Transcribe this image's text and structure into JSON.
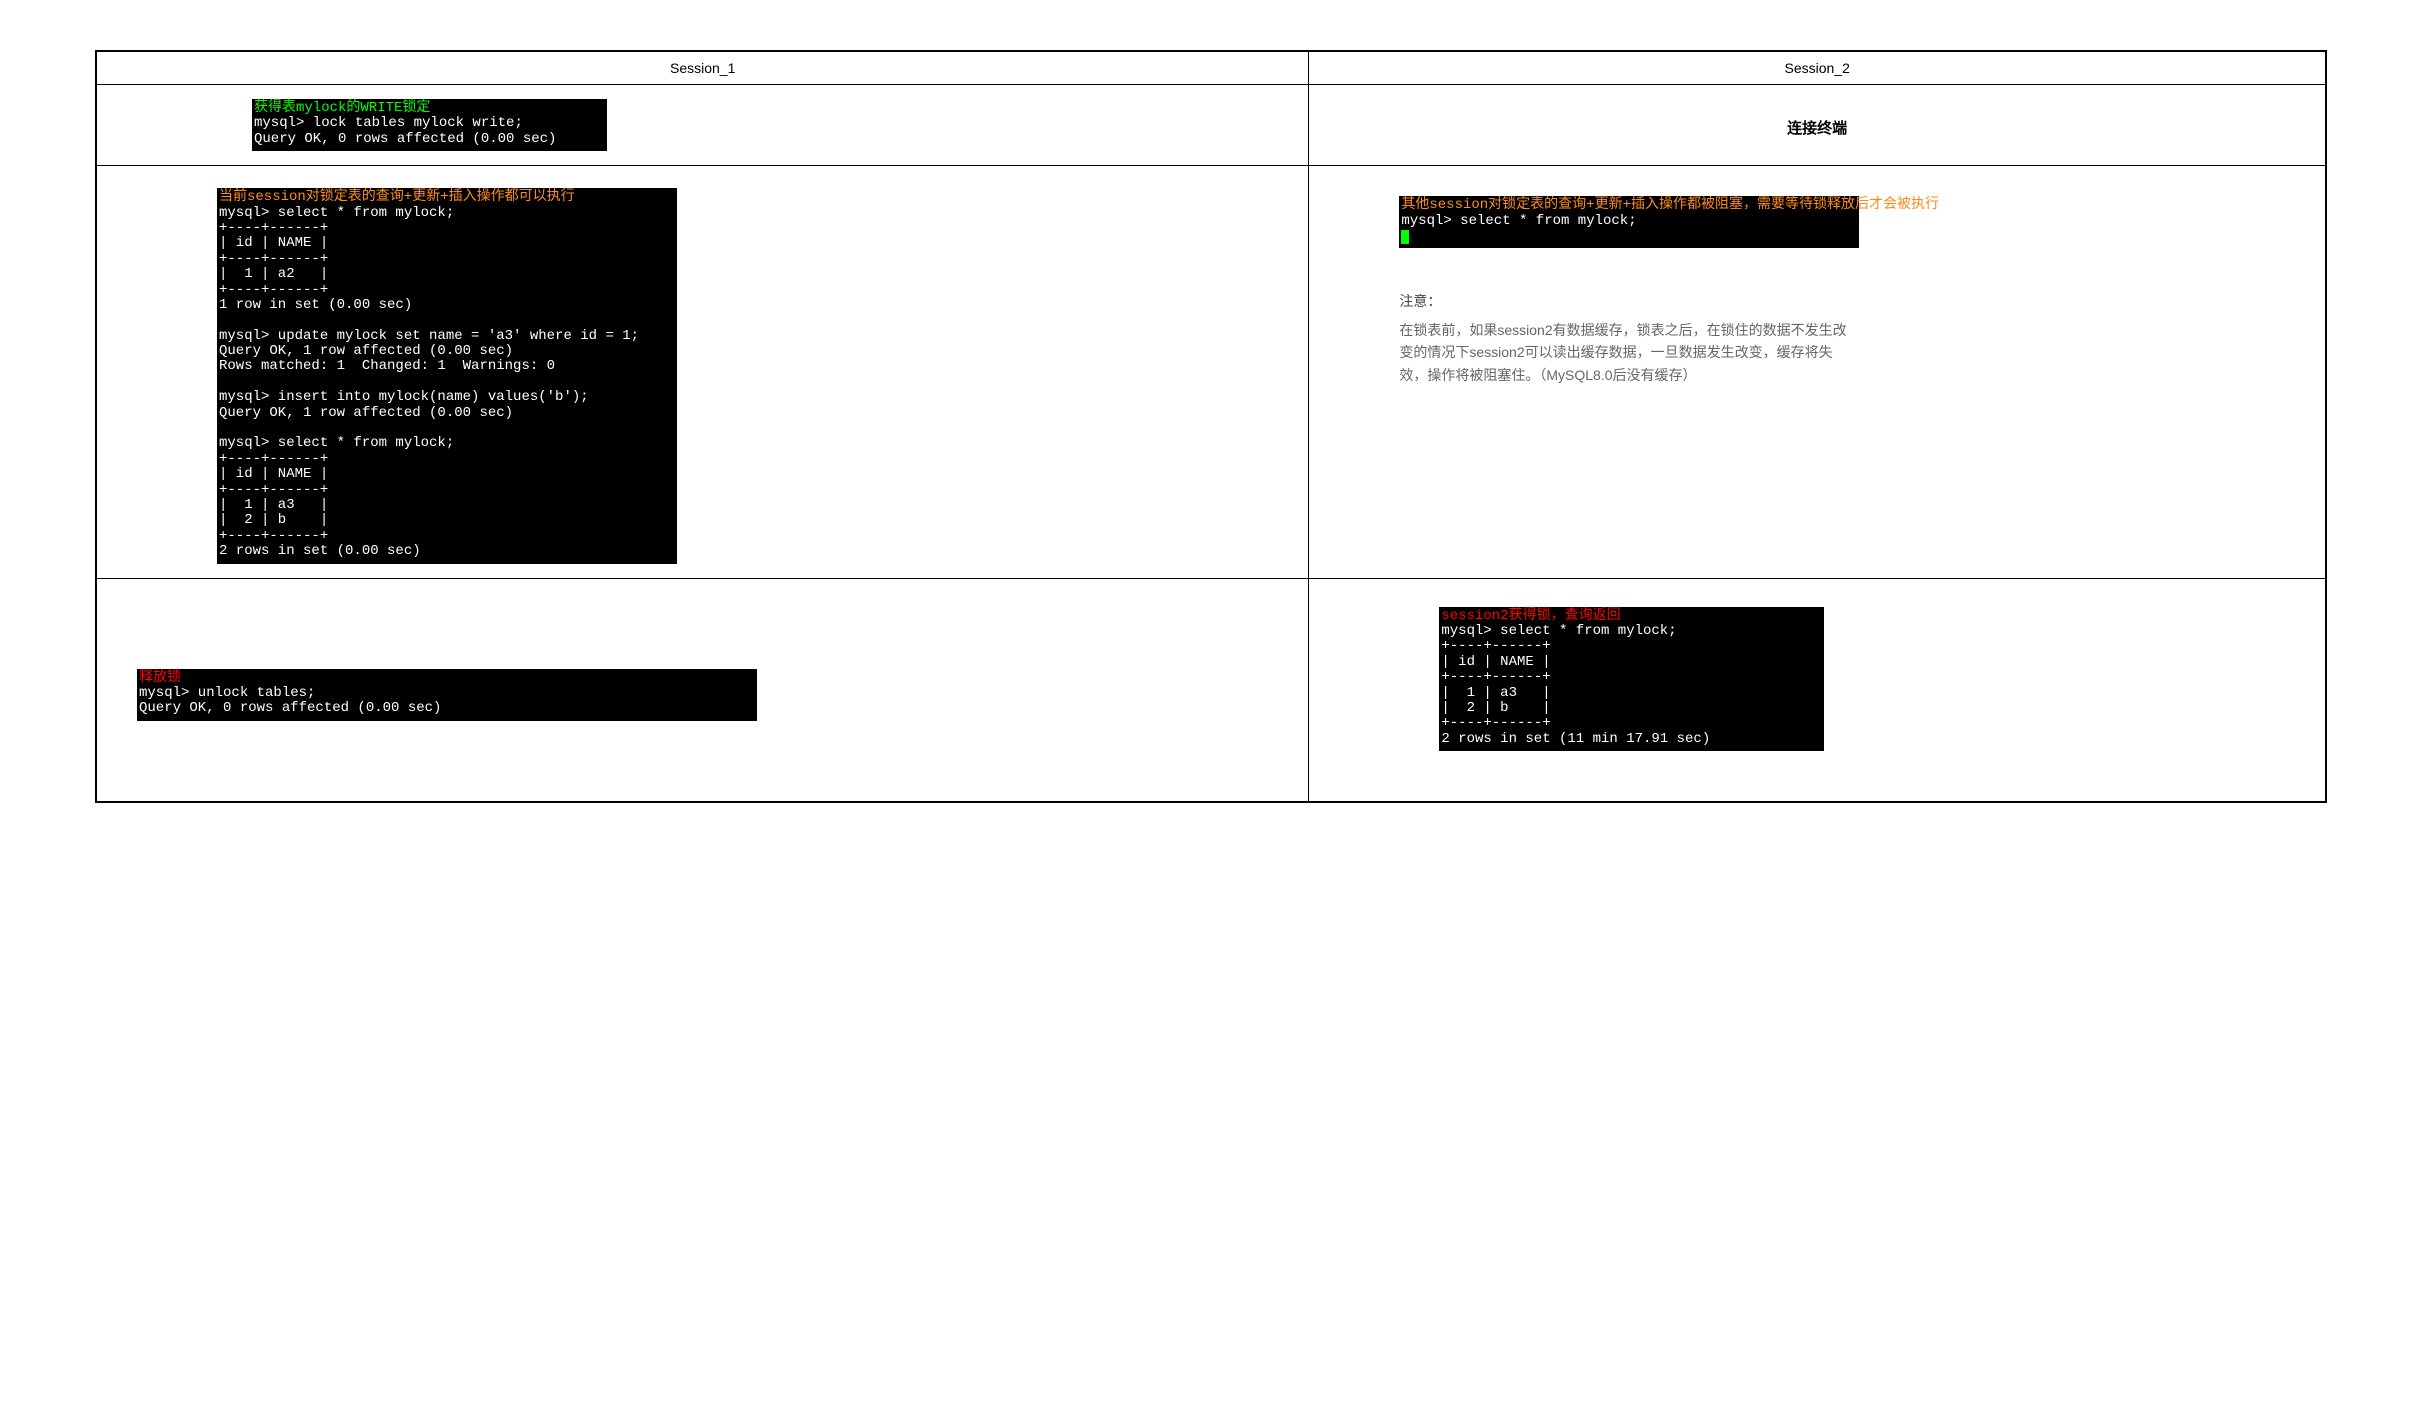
{
  "headers": {
    "col1": "Session_1",
    "col2": "Session_2"
  },
  "row1": {
    "left": {
      "header": "获得表mylock的WRITE锁定",
      "header_color": "#00ff00",
      "lines": "mysql> lock tables mylock write;\nQuery OK, 0 rows affected (0.00 sec)"
    },
    "right": {
      "text": "连接终端"
    }
  },
  "row2": {
    "left": {
      "header": "当前session对锁定表的查询+更新+插入操作都可以执行",
      "header_color": "#ff8c1a",
      "lines": "mysql> select * from mylock;\n+----+------+\n| id | NAME |\n+----+------+\n|  1 | a2   |\n+----+------+\n1 row in set (0.00 sec)\n\nmysql> update mylock set name = 'a3' where id = 1;\nQuery OK, 1 row affected (0.00 sec)\nRows matched: 1  Changed: 1  Warnings: 0\n\nmysql> insert into mylock(name) values('b');\nQuery OK, 1 row affected (0.00 sec)\n\nmysql> select * from mylock;\n+----+------+\n| id | NAME |\n+----+------+\n|  1 | a3   |\n|  2 | b    |\n+----+------+\n2 rows in set (0.00 sec)"
    },
    "right": {
      "header": "其他session对锁定表的查询+更新+插入操作都被阻塞，需要等待锁释放后才会被执行",
      "header_color": "#ff8c1a",
      "lines": "mysql> select * from mylock;",
      "show_cursor": true,
      "note_title": "注意：",
      "note_body": "在锁表前，如果session2有数据缓存，锁表之后，在锁住的数据不发生改变的情况下session2可以读出缓存数据，一旦数据发生改变，缓存将失效，操作将被阻塞住。（MySQL8.0后没有缓存）"
    }
  },
  "row3": {
    "left": {
      "header": "释放锁",
      "header_color": "#ff0000",
      "lines": "mysql> unlock tables;\nQuery OK, 0 rows affected (0.00 sec)"
    },
    "right": {
      "header": "session2获得锁，查询返回",
      "header_color": "#ff0000",
      "lines": "mysql> select * from mylock;\n+----+------+\n| id | NAME |\n+----+------+\n|  1 | a3   |\n|  2 | b    |\n+----+------+\n2 rows in set (11 min 17.91 sec)"
    }
  },
  "colors": {
    "terminal_bg": "#000000",
    "terminal_fg": "#ffffff",
    "cursor": "#00ff00",
    "note_text": "#666666",
    "page_bg": "#ffffff",
    "border": "#000000"
  }
}
